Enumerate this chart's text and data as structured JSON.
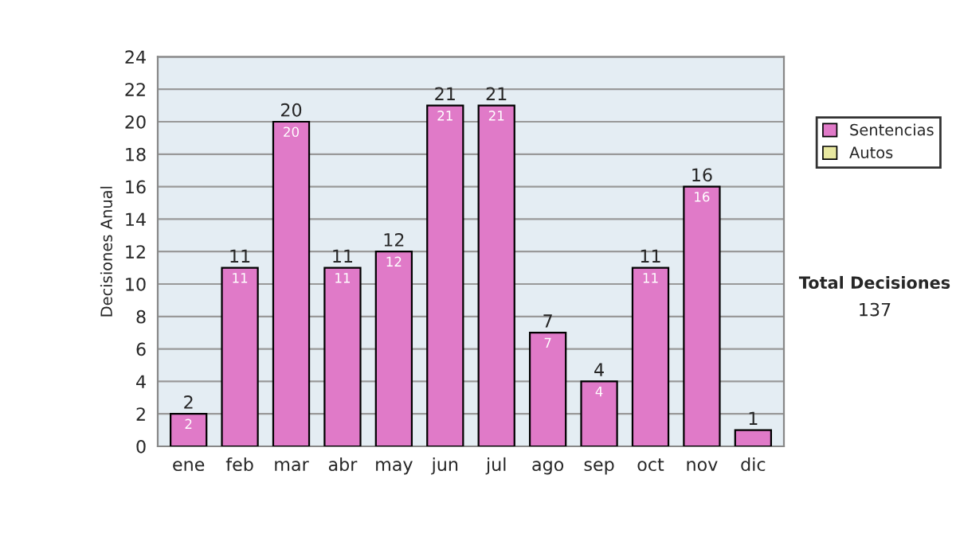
{
  "chart_data": {
    "type": "bar",
    "stacked": true,
    "ylabel": "Decisiones Anual",
    "categories": [
      "ene",
      "feb",
      "mar",
      "abr",
      "may",
      "jun",
      "jul",
      "ago",
      "sep",
      "oct",
      "nov",
      "dic"
    ],
    "series": [
      {
        "name": "Sentencias",
        "color": "#e07ac8",
        "values": [
          2,
          11,
          20,
          11,
          12,
          21,
          21,
          7,
          4,
          11,
          16,
          1
        ],
        "value_labels": [
          "2",
          "11",
          "20",
          "11",
          "12",
          "21",
          "21",
          "7",
          "4",
          "11",
          "16",
          null
        ]
      },
      {
        "name": "Autos",
        "color": "#e8e8a0",
        "values": [
          0,
          0,
          0,
          0,
          0,
          0,
          0,
          0,
          0,
          0,
          0,
          0
        ]
      }
    ],
    "totals": [
      "2",
      "11",
      "20",
      "11",
      "12",
      "21",
      "21",
      "7",
      "4",
      "11",
      "16",
      "1"
    ],
    "ylim": [
      0,
      24
    ],
    "yticks": [
      0,
      2,
      4,
      6,
      8,
      10,
      12,
      14,
      16,
      18,
      20,
      22,
      24
    ],
    "grid": "y",
    "legend": "right",
    "annotations": [
      "Total Decisiones",
      "137"
    ]
  }
}
